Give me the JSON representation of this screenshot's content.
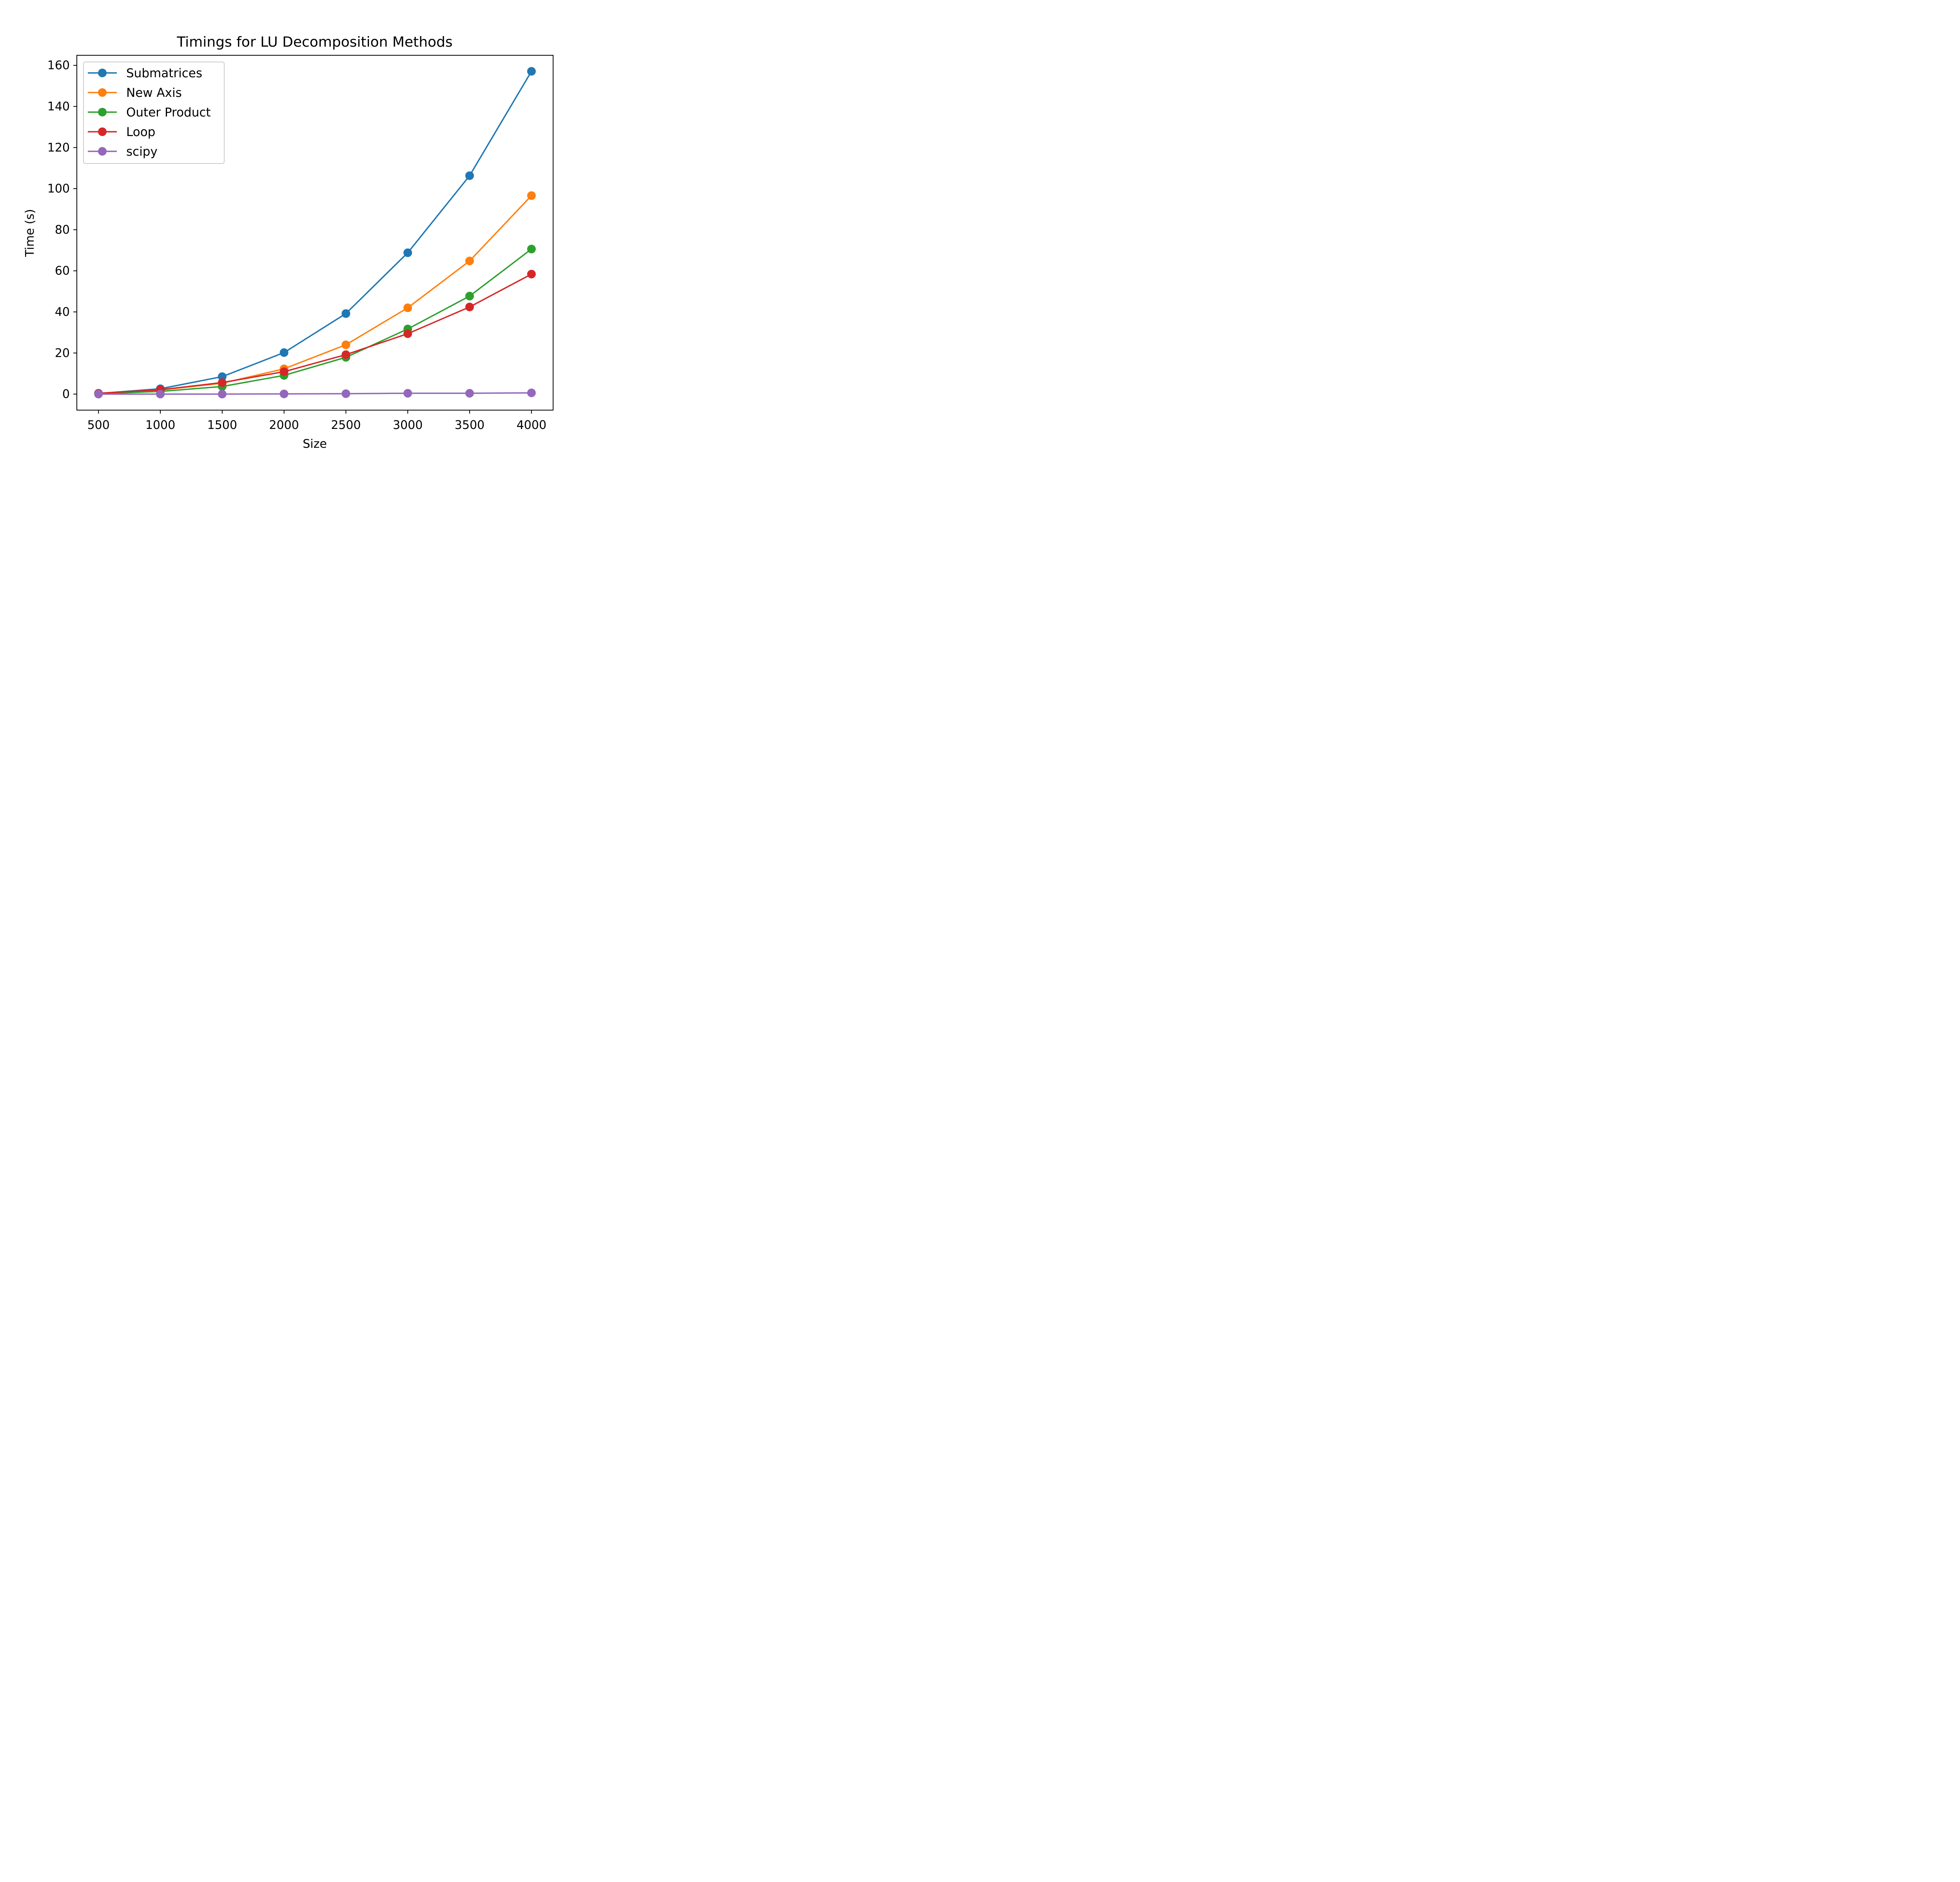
{
  "chart_data": {
    "type": "line",
    "title": "Timings for LU Decomposition Methods",
    "xlabel": "Size",
    "ylabel": "Time (s)",
    "x": [
      500,
      1000,
      1500,
      2000,
      2500,
      3000,
      3500,
      4000
    ],
    "xlim": [
      325,
      4175
    ],
    "ylim": [
      -7.8,
      164.9
    ],
    "xticks": [
      500,
      1000,
      1500,
      2000,
      2500,
      3000,
      3500,
      4000
    ],
    "yticks": [
      0,
      20,
      40,
      60,
      80,
      100,
      120,
      140,
      160
    ],
    "grid": false,
    "legend_position": "upper-left",
    "series": [
      {
        "name": "Submatrices",
        "color": "#1f77b4",
        "marker": "circle",
        "values": [
          0.3,
          2.6,
          8.5,
          20.2,
          39.2,
          68.8,
          106.3,
          157.1
        ]
      },
      {
        "name": "New Axis",
        "color": "#ff7f0e",
        "marker": "circle",
        "values": [
          0.3,
          2.0,
          5.3,
          12.3,
          24.0,
          42.0,
          64.8,
          96.6
        ]
      },
      {
        "name": "Outer Product",
        "color": "#2ca02c",
        "marker": "circle",
        "values": [
          0.2,
          1.3,
          3.7,
          9.1,
          17.9,
          31.7,
          47.7,
          70.6
        ]
      },
      {
        "name": "Loop",
        "color": "#d62728",
        "marker": "circle",
        "values": [
          0.4,
          2.1,
          5.6,
          10.9,
          19.2,
          29.4,
          42.4,
          58.4
        ]
      },
      {
        "name": "scipy",
        "color": "#9467bd",
        "marker": "circle",
        "values": [
          0.0,
          0.0,
          0.0,
          0.1,
          0.2,
          0.4,
          0.4,
          0.6
        ]
      }
    ]
  }
}
